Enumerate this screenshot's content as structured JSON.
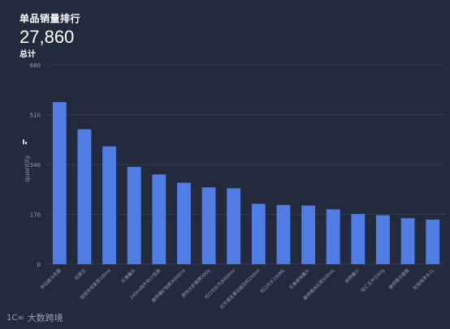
{
  "header": {
    "title": "单品销量排行",
    "total_value": "27,860",
    "total_label": "总计"
  },
  "watermark": {
    "logo": "1C∞",
    "text": "大数跨境"
  },
  "chart_data": {
    "type": "bar",
    "ylabel": "quantity",
    "ylim": [
      0,
      680
    ],
    "yticks": [
      0,
      170,
      340,
      510,
      680
    ],
    "grid": true,
    "bar_color": "#4f7de3",
    "categories": [
      "辛拉面乌冬面",
      "拉面王",
      "饭团专用紫菜100ml",
      "乐事薯片",
      "240ml纯牛奶小包装",
      "康师傅矿物质水600ml",
      "原味大虾酱牌300g",
      "可口可乐汽水600ml",
      "红牛维生素功能饮料250ml",
      "可口可乐330ML",
      "乐事原味薯片",
      "康师傅冰红茶500mL",
      "鲜榨橙汁",
      "双汇王中王60g",
      "康师傅方便面",
      "怡宝纯净水1L"
    ],
    "values": [
      553,
      460,
      402,
      332,
      306,
      278,
      262,
      259,
      206,
      202,
      200,
      187,
      171,
      167,
      157,
      152
    ]
  }
}
